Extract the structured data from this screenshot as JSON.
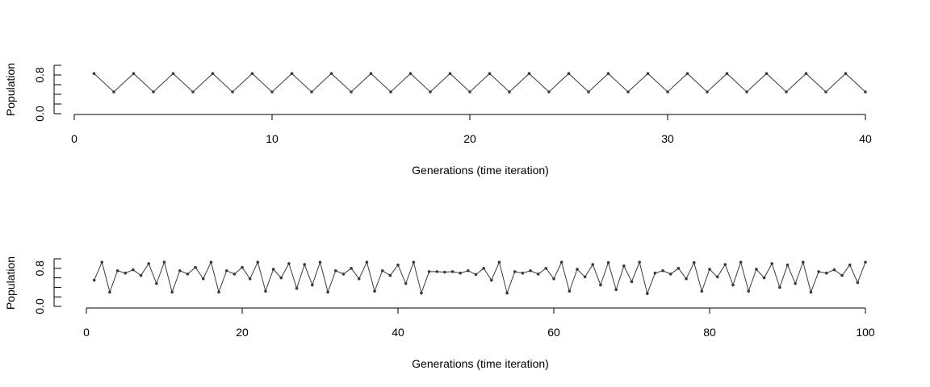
{
  "chart_data": [
    {
      "type": "line",
      "xlabel": "Generations (time iteration)",
      "ylabel": "Population",
      "xlim": [
        0,
        40
      ],
      "ylim": [
        0.0,
        1.0
      ],
      "xticks": [
        0,
        10,
        20,
        30,
        40
      ],
      "xtick_labels": [
        "0",
        "10",
        "20",
        "30",
        "40"
      ],
      "yticks": [
        0.0,
        0.2,
        0.4,
        0.6,
        0.8,
        1.0
      ],
      "ytick_labels": [
        "0.0",
        "",
        "",
        "",
        "0.8",
        ""
      ],
      "grid": false,
      "legend": "none",
      "color": "#3a3a3a",
      "series": [
        {
          "x": [
            1,
            2,
            3,
            4,
            5,
            6,
            7,
            8,
            9,
            10,
            11,
            12,
            13,
            14,
            15,
            16,
            17,
            18,
            19,
            20,
            21,
            22,
            23,
            24,
            25,
            26,
            27,
            28,
            29,
            30,
            31,
            32,
            33,
            34,
            35,
            36,
            37,
            38,
            39,
            40
          ],
          "y": [
            0.83,
            0.45,
            0.83,
            0.45,
            0.83,
            0.45,
            0.83,
            0.45,
            0.83,
            0.45,
            0.83,
            0.45,
            0.83,
            0.45,
            0.83,
            0.45,
            0.83,
            0.45,
            0.83,
            0.45,
            0.83,
            0.45,
            0.83,
            0.45,
            0.83,
            0.45,
            0.83,
            0.45,
            0.83,
            0.45,
            0.83,
            0.45,
            0.83,
            0.45,
            0.83,
            0.45,
            0.83,
            0.45,
            0.83,
            0.45
          ]
        }
      ]
    },
    {
      "type": "line",
      "xlabel": "Generations (time iteration)",
      "ylabel": "Population",
      "xlim": [
        0,
        100
      ],
      "ylim": [
        0.0,
        1.0
      ],
      "xticks": [
        0,
        20,
        40,
        60,
        80,
        100
      ],
      "xtick_labels": [
        "0",
        "20",
        "40",
        "60",
        "80",
        "100"
      ],
      "yticks": [
        0.0,
        0.2,
        0.4,
        0.6,
        0.8,
        1.0
      ],
      "ytick_labels": [
        "0.0",
        "",
        "",
        "",
        "0.8",
        ""
      ],
      "grid": false,
      "legend": "none",
      "color": "#3a3a3a",
      "series": [
        {
          "x": [
            1,
            2,
            3,
            4,
            5,
            6,
            7,
            8,
            9,
            10,
            11,
            12,
            13,
            14,
            15,
            16,
            17,
            18,
            19,
            20,
            21,
            22,
            23,
            24,
            25,
            26,
            27,
            28,
            29,
            30,
            31,
            32,
            33,
            34,
            35,
            36,
            37,
            38,
            39,
            40,
            41,
            42,
            43,
            44,
            45,
            46,
            47,
            48,
            49,
            50,
            51,
            52,
            53,
            54,
            55,
            56,
            57,
            58,
            59,
            60,
            61,
            62,
            63,
            64,
            65,
            66,
            67,
            68,
            69,
            70,
            71,
            72,
            73,
            74,
            75,
            76,
            77,
            78,
            79,
            80,
            81,
            82,
            83,
            84,
            85,
            86,
            87,
            88,
            89,
            90,
            91,
            92,
            93,
            94,
            95,
            96,
            97,
            98,
            99,
            100
          ],
          "y": [
            0.55,
            0.93,
            0.3,
            0.75,
            0.7,
            0.77,
            0.65,
            0.9,
            0.48,
            0.93,
            0.3,
            0.75,
            0.68,
            0.82,
            0.58,
            0.93,
            0.3,
            0.75,
            0.68,
            0.82,
            0.58,
            0.93,
            0.32,
            0.78,
            0.6,
            0.9,
            0.38,
            0.88,
            0.45,
            0.93,
            0.3,
            0.75,
            0.68,
            0.8,
            0.58,
            0.93,
            0.32,
            0.75,
            0.65,
            0.87,
            0.48,
            0.93,
            0.28,
            0.73,
            0.73,
            0.72,
            0.73,
            0.7,
            0.75,
            0.67,
            0.8,
            0.55,
            0.93,
            0.28,
            0.73,
            0.7,
            0.75,
            0.68,
            0.8,
            0.58,
            0.93,
            0.32,
            0.78,
            0.62,
            0.88,
            0.45,
            0.92,
            0.35,
            0.85,
            0.52,
            0.93,
            0.27,
            0.7,
            0.75,
            0.68,
            0.8,
            0.58,
            0.92,
            0.32,
            0.78,
            0.62,
            0.88,
            0.45,
            0.93,
            0.32,
            0.78,
            0.6,
            0.9,
            0.4,
            0.87,
            0.48,
            0.93,
            0.3,
            0.73,
            0.7,
            0.77,
            0.65,
            0.87,
            0.5,
            0.93
          ]
        }
      ]
    }
  ]
}
